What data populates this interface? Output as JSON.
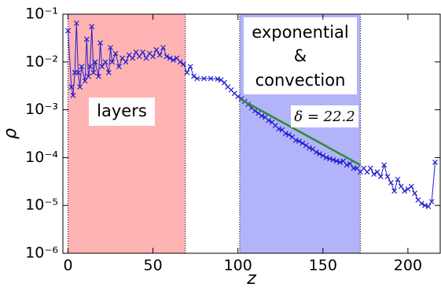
{
  "chart_data": {
    "type": "line",
    "xlabel": "z",
    "ylabel": "ρ",
    "xlim": [
      -3,
      219
    ],
    "ylim": [
      1e-06,
      0.1
    ],
    "log_y": true,
    "xticks": [
      0,
      50,
      100,
      150,
      200
    ],
    "yticks": [
      {
        "value": 1e-06,
        "label": "10⁻⁶"
      },
      {
        "value": 1e-05,
        "label": "10⁻⁵"
      },
      {
        "value": 0.0001,
        "label": "10⁻⁴"
      },
      {
        "value": 0.001,
        "label": "10⁻³"
      },
      {
        "value": 0.01,
        "label": "10⁻²"
      },
      {
        "value": 0.1,
        "label": "10⁻¹"
      }
    ],
    "regions": [
      {
        "x": [
          0,
          69
        ],
        "color": "#ffb3b3"
      },
      {
        "x": [
          101,
          172
        ],
        "color": "#b3b3fa"
      }
    ],
    "annotations": {
      "layers": "layers",
      "exponential": [
        "exponential",
        "&",
        "convection"
      ],
      "delta": "δ = 22.2"
    },
    "fit": {
      "x": [
        101,
        172
      ],
      "values": [
        0.0017,
        7e-05
      ],
      "color": "#2e8b2e"
    },
    "x": [
      0,
      2,
      3,
      4,
      5,
      6,
      7,
      8,
      10,
      11,
      12,
      13,
      14,
      15,
      16,
      18,
      19,
      20,
      22,
      24,
      25,
      26,
      28,
      30,
      32,
      34,
      36,
      38,
      40,
      42,
      44,
      46,
      48,
      50,
      52,
      54,
      56,
      58,
      60,
      62,
      64,
      66,
      68,
      70,
      72,
      74,
      76,
      80,
      84,
      88,
      90,
      92,
      94,
      96,
      98,
      100,
      102,
      104,
      106,
      108,
      110,
      112,
      114,
      116,
      118,
      120,
      122,
      124,
      126,
      128,
      130,
      132,
      134,
      136,
      138,
      140,
      142,
      144,
      146,
      148,
      150,
      152,
      154,
      156,
      158,
      160,
      162,
      164,
      166,
      168,
      170,
      172,
      174,
      176,
      178,
      180,
      182,
      184,
      186,
      188,
      190,
      192,
      194,
      196,
      198,
      200,
      202,
      204,
      206,
      208,
      210,
      212,
      214,
      216
    ],
    "series": [
      {
        "color": "#1f1fcc",
        "values": [
          0.045,
          0.003,
          0.002,
          0.006,
          0.065,
          0.006,
          0.003,
          0.008,
          0.004,
          0.03,
          0.005,
          0.008,
          0.055,
          0.006,
          0.01,
          0.005,
          0.025,
          0.008,
          0.01,
          0.006,
          0.02,
          0.01,
          0.015,
          0.008,
          0.012,
          0.01,
          0.014,
          0.012,
          0.016,
          0.013,
          0.016,
          0.012,
          0.015,
          0.013,
          0.018,
          0.014,
          0.02,
          0.013,
          0.012,
          0.011,
          0.012,
          0.01,
          0.009,
          0.006,
          0.008,
          0.005,
          0.0045,
          0.0045,
          0.0045,
          0.0044,
          0.0042,
          0.0037,
          0.003,
          0.0026,
          0.0022,
          0.0019,
          0.0017,
          0.0015,
          0.0013,
          0.0011,
          0.00095,
          0.00085,
          0.00075,
          0.0007,
          0.0006,
          0.00055,
          0.00047,
          0.0004,
          0.00038,
          0.00032,
          0.0003,
          0.00027,
          0.00023,
          0.00022,
          0.0002,
          0.00018,
          0.00016,
          0.00015,
          0.00013,
          0.00012,
          0.00011,
          0.0001,
          9.5e-05,
          9e-05,
          8.5e-05,
          8e-05,
          8.5e-05,
          7e-05,
          7.5e-05,
          6e-05,
          6e-05,
          5e-05,
          6e-05,
          5e-05,
          6e-05,
          4.5e-05,
          5e-05,
          4e-05,
          7e-05,
          4e-05,
          3e-05,
          2e-05,
          3.5e-05,
          2.5e-05,
          2e-05,
          2.2e-05,
          2.5e-05,
          1.8e-05,
          1.3e-05,
          1.1e-05,
          1e-05,
          9.5e-06,
          1.2e-05,
          8e-05
        ]
      }
    ]
  }
}
